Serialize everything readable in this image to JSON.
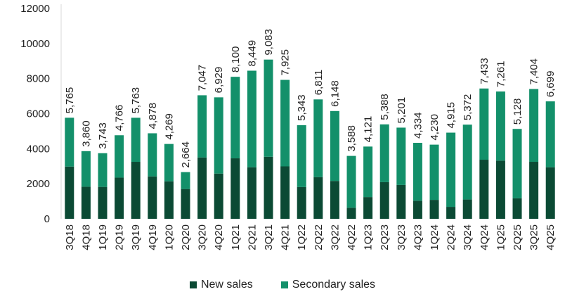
{
  "chart_data": {
    "type": "bar",
    "stacked": true,
    "categories": [
      "3Q18",
      "4Q18",
      "1Q19",
      "2Q19",
      "3Q19",
      "4Q19",
      "1Q20",
      "2Q20",
      "3Q20",
      "4Q20",
      "1Q21",
      "2Q21",
      "3Q21",
      "4Q21",
      "1Q22",
      "2Q22",
      "3Q22",
      "4Q22",
      "1Q23",
      "2Q23",
      "3Q23",
      "4Q23",
      "1Q24",
      "2Q24",
      "3Q24",
      "4Q24",
      "1Q25",
      "2Q25",
      "3Q25",
      "4Q25"
    ],
    "series": [
      {
        "name": "New sales",
        "color": "#0b4a34",
        "values": [
          2980,
          1830,
          1820,
          2350,
          3250,
          2420,
          2140,
          1700,
          3500,
          2580,
          3450,
          2940,
          3540,
          2990,
          1810,
          2380,
          2160,
          630,
          1240,
          2090,
          1930,
          1030,
          1080,
          680,
          1100,
          3370,
          3320,
          1170,
          3250,
          2940
        ]
      },
      {
        "name": "Secondary sales",
        "color": "#13906a",
        "values": [
          2785,
          2030,
          1923,
          2416,
          2513,
          2458,
          2129,
          964,
          3547,
          4349,
          4650,
          5509,
          5543,
          4935,
          3533,
          4431,
          3988,
          2958,
          2881,
          3298,
          3271,
          3304,
          3150,
          4235,
          4272,
          4063,
          3941,
          3958,
          4154,
          3759
        ]
      }
    ],
    "totals": [
      5765,
      3860,
      3743,
      4766,
      5763,
      4878,
      4269,
      2664,
      7047,
      6929,
      8100,
      8449,
      9083,
      7925,
      5343,
      6811,
      6148,
      3588,
      4121,
      5388,
      5201,
      4334,
      4230,
      4915,
      5372,
      7433,
      7261,
      5128,
      7404,
      6699
    ],
    "total_labels": [
      "5,765",
      "3,860",
      "3,743",
      "4,766",
      "5,763",
      "4,878",
      "4,269",
      "2,664",
      "7,047",
      "6,929",
      "8,100",
      "8,449",
      "9,083",
      "7,925",
      "5,343",
      "6,811",
      "6,148",
      "3,588",
      "4,121",
      "5,388",
      "5,201",
      "4,334",
      "4,230",
      "4,915",
      "5,372",
      "7,433",
      "7,261",
      "5,128",
      "7,404",
      "6,699"
    ],
    "y_ticks": [
      0,
      2000,
      4000,
      6000,
      8000,
      10000,
      12000
    ],
    "ylim": [
      0,
      12000
    ],
    "title": "",
    "xlabel": "",
    "ylabel": "",
    "grid": false,
    "legend_position": "bottom"
  },
  "legend": {
    "new_sales": "New sales",
    "secondary_sales": "Secondary sales"
  }
}
